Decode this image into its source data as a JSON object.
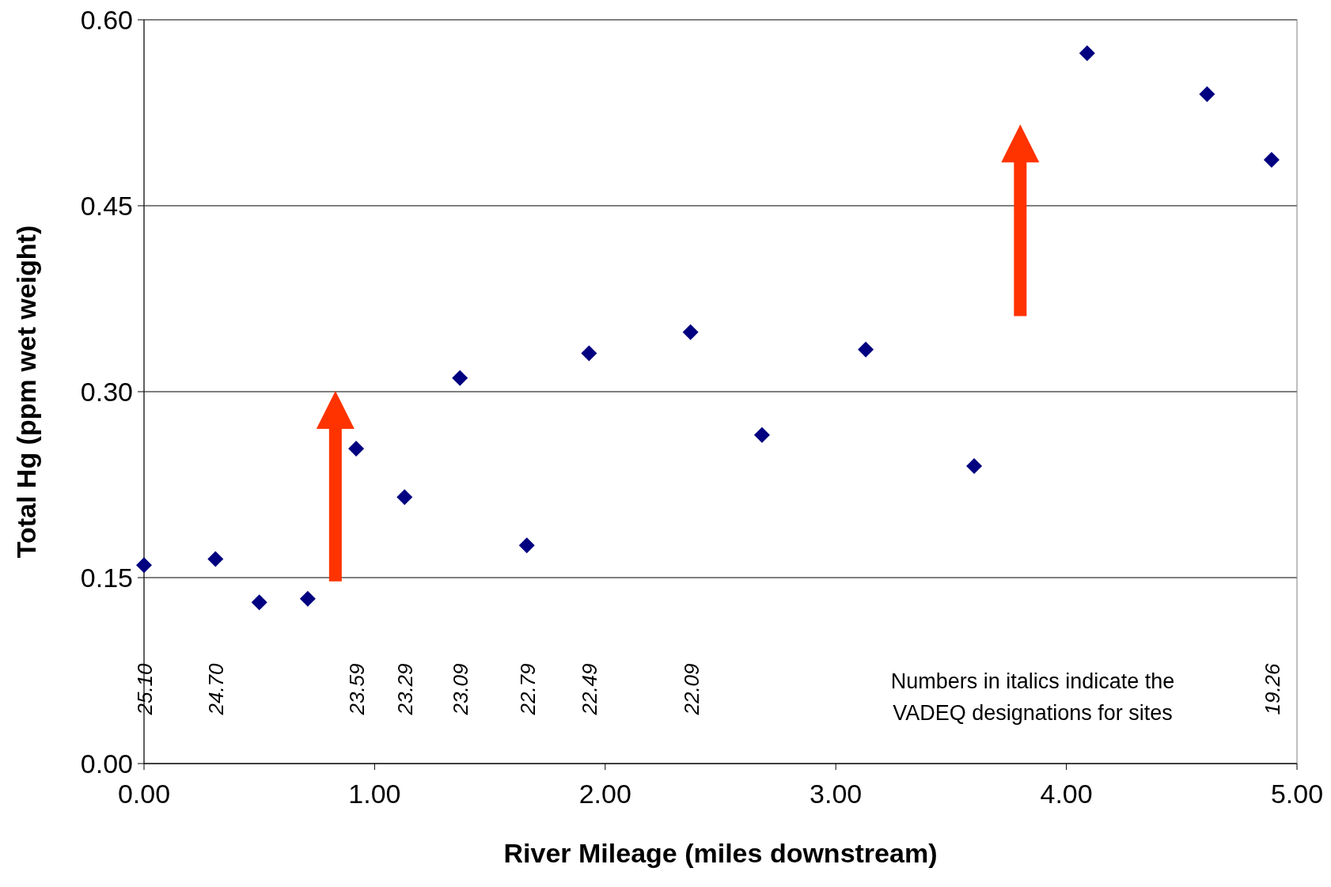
{
  "chart_data": {
    "type": "scatter",
    "xlabel": "River Mileage (miles downstream)",
    "ylabel": "Total Hg (ppm wet weight)",
    "x": [
      0,
      0.31,
      0.5,
      0.71,
      0.92,
      1.13,
      1.37,
      1.66,
      1.93,
      2.37,
      2.68,
      3.13,
      3.6,
      4.09,
      4.61,
      4.89
    ],
    "series": [
      {
        "color": "#000080",
        "values": [
          0.16,
          0.165,
          0.13,
          0.133,
          0.254,
          0.215,
          0.311,
          0.176,
          0.331,
          0.348,
          0.265,
          0.334,
          0.24,
          0.573,
          0.54,
          0.487
        ]
      }
    ],
    "xlim": [
      0,
      5
    ],
    "xticks": [
      {
        "value": 0,
        "label": "0.00"
      },
      {
        "value": 1,
        "label": "1.00"
      },
      {
        "value": 2,
        "label": "2.00"
      },
      {
        "value": 3,
        "label": "3.00"
      },
      {
        "value": 4,
        "label": "4.00"
      },
      {
        "value": 5,
        "label": "5.00"
      }
    ],
    "ylim": [
      0,
      0.6
    ],
    "yticks": [
      {
        "value": 0,
        "label": "0.00"
      },
      {
        "value": 0.15,
        "label": "0.15"
      },
      {
        "value": 0.3,
        "label": "0.30"
      },
      {
        "value": 0.45,
        "label": "0.45"
      },
      {
        "value": 0.6,
        "label": "0.60"
      }
    ],
    "grid": "y",
    "marker": "diamond",
    "annotations": [
      "25.10",
      "24.70",
      "23.59",
      "23.29",
      "23.09",
      "22.79",
      "22.49",
      "22.09",
      "19.26",
      "Numbers in italics indicate the\nVADEQ designations for sites"
    ]
  }
}
